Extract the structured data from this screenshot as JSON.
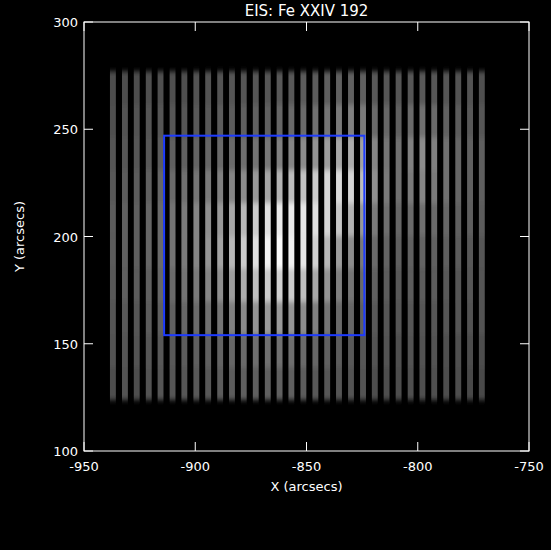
{
  "chart_data": {
    "type": "image",
    "title": "EIS: Fe XXIV 192",
    "x_label": "X (arcsecs)",
    "y_label": "Y (arcsecs)",
    "xlim": [
      -950,
      -750
    ],
    "ylim": [
      100,
      300
    ],
    "xticks": [
      -950,
      -900,
      -850,
      -800,
      -750
    ],
    "yticks": [
      100,
      150,
      200,
      250,
      300
    ],
    "zlim": [
      0,
      1
    ],
    "y_bins": [
      124,
      139.3,
      154.6,
      169.9,
      185.2,
      200.5,
      215.8,
      231.1,
      246.4,
      261.7,
      277
    ],
    "stripes": [
      {
        "x": -937.0,
        "values": [
          0.3,
          0.32,
          0.33,
          0.35,
          0.36,
          0.36,
          0.35,
          0.33,
          0.31,
          0.3
        ]
      },
      {
        "x": -931.6,
        "values": [
          0.32,
          0.33,
          0.35,
          0.37,
          0.38,
          0.38,
          0.36,
          0.34,
          0.32,
          0.3
        ]
      },
      {
        "x": -926.3,
        "values": [
          0.3,
          0.32,
          0.34,
          0.36,
          0.37,
          0.37,
          0.36,
          0.34,
          0.32,
          0.3
        ]
      },
      {
        "x": -920.9,
        "values": [
          0.32,
          0.34,
          0.36,
          0.38,
          0.4,
          0.4,
          0.38,
          0.35,
          0.33,
          0.31
        ]
      },
      {
        "x": -915.6,
        "values": [
          0.33,
          0.35,
          0.37,
          0.4,
          0.42,
          0.42,
          0.4,
          0.36,
          0.33,
          0.31
        ]
      },
      {
        "x": -910.2,
        "values": [
          0.33,
          0.35,
          0.38,
          0.42,
          0.45,
          0.45,
          0.42,
          0.37,
          0.34,
          0.31
        ]
      },
      {
        "x": -904.9,
        "values": [
          0.34,
          0.36,
          0.4,
          0.45,
          0.48,
          0.48,
          0.44,
          0.38,
          0.34,
          0.31
        ]
      },
      {
        "x": -899.5,
        "values": [
          0.35,
          0.37,
          0.42,
          0.48,
          0.52,
          0.52,
          0.46,
          0.39,
          0.35,
          0.32
        ]
      },
      {
        "x": -894.2,
        "values": [
          0.35,
          0.38,
          0.44,
          0.52,
          0.58,
          0.56,
          0.48,
          0.4,
          0.35,
          0.32
        ]
      },
      {
        "x": -888.8,
        "values": [
          0.36,
          0.39,
          0.46,
          0.56,
          0.64,
          0.6,
          0.5,
          0.41,
          0.36,
          0.32
        ]
      },
      {
        "x": -883.5,
        "values": [
          0.36,
          0.4,
          0.5,
          0.62,
          0.72,
          0.66,
          0.52,
          0.42,
          0.36,
          0.33
        ]
      },
      {
        "x": -878.2,
        "values": [
          0.37,
          0.42,
          0.54,
          0.68,
          0.8,
          0.72,
          0.55,
          0.43,
          0.37,
          0.33
        ]
      },
      {
        "x": -872.8,
        "values": [
          0.37,
          0.43,
          0.58,
          0.75,
          0.88,
          0.8,
          0.6,
          0.45,
          0.38,
          0.34
        ]
      },
      {
        "x": -867.4,
        "values": [
          0.38,
          0.44,
          0.6,
          0.8,
          0.95,
          0.88,
          0.65,
          0.47,
          0.38,
          0.34
        ]
      },
      {
        "x": -862.1,
        "values": [
          0.38,
          0.44,
          0.6,
          0.82,
          0.98,
          0.92,
          0.7,
          0.5,
          0.4,
          0.35
        ]
      },
      {
        "x": -856.8,
        "values": [
          0.37,
          0.43,
          0.58,
          0.8,
          0.95,
          0.92,
          0.74,
          0.52,
          0.41,
          0.35
        ]
      },
      {
        "x": -851.4,
        "values": [
          0.36,
          0.42,
          0.55,
          0.75,
          0.9,
          0.9,
          0.76,
          0.55,
          0.42,
          0.36
        ]
      },
      {
        "x": -846.0,
        "values": [
          0.35,
          0.4,
          0.5,
          0.66,
          0.82,
          0.88,
          0.8,
          0.58,
          0.44,
          0.36
        ]
      },
      {
        "x": -840.7,
        "values": [
          0.34,
          0.38,
          0.46,
          0.58,
          0.72,
          0.84,
          0.84,
          0.62,
          0.46,
          0.37
        ]
      },
      {
        "x": -835.4,
        "values": [
          0.33,
          0.36,
          0.42,
          0.5,
          0.62,
          0.78,
          0.86,
          0.66,
          0.48,
          0.38
        ]
      },
      {
        "x": -830.0,
        "values": [
          0.32,
          0.35,
          0.4,
          0.46,
          0.55,
          0.7,
          0.84,
          0.68,
          0.5,
          0.38
        ]
      },
      {
        "x": -824.6,
        "values": [
          0.32,
          0.34,
          0.38,
          0.42,
          0.48,
          0.6,
          0.74,
          0.64,
          0.48,
          0.37
        ]
      },
      {
        "x": -819.3,
        "values": [
          0.3,
          0.32,
          0.35,
          0.38,
          0.42,
          0.48,
          0.56,
          0.52,
          0.42,
          0.35
        ]
      },
      {
        "x": -814.0,
        "values": [
          0.3,
          0.32,
          0.34,
          0.36,
          0.39,
          0.43,
          0.48,
          0.46,
          0.4,
          0.34
        ]
      },
      {
        "x": -808.6,
        "values": [
          0.3,
          0.31,
          0.33,
          0.35,
          0.37,
          0.4,
          0.44,
          0.44,
          0.38,
          0.33
        ]
      },
      {
        "x": -803.2,
        "values": [
          0.31,
          0.32,
          0.34,
          0.36,
          0.38,
          0.42,
          0.48,
          0.5,
          0.42,
          0.34
        ]
      },
      {
        "x": -797.9,
        "values": [
          0.31,
          0.32,
          0.34,
          0.36,
          0.39,
          0.44,
          0.52,
          0.55,
          0.44,
          0.35
        ]
      },
      {
        "x": -792.6,
        "values": [
          0.31,
          0.32,
          0.34,
          0.36,
          0.38,
          0.42,
          0.48,
          0.5,
          0.42,
          0.34
        ]
      },
      {
        "x": -787.2,
        "values": [
          0.3,
          0.31,
          0.33,
          0.35,
          0.37,
          0.4,
          0.44,
          0.44,
          0.38,
          0.33
        ]
      },
      {
        "x": -781.8,
        "values": [
          0.3,
          0.31,
          0.33,
          0.34,
          0.36,
          0.38,
          0.4,
          0.4,
          0.36,
          0.32
        ]
      },
      {
        "x": -776.5,
        "values": [
          0.29,
          0.3,
          0.32,
          0.34,
          0.35,
          0.37,
          0.38,
          0.38,
          0.35,
          0.32
        ]
      },
      {
        "x": -771.2,
        "values": [
          0.29,
          0.3,
          0.32,
          0.33,
          0.34,
          0.36,
          0.37,
          0.37,
          0.34,
          0.31
        ]
      }
    ],
    "box": {
      "x": [
        -914,
        -824
      ],
      "y": [
        154,
        247
      ],
      "color": "#1e3cff"
    }
  }
}
